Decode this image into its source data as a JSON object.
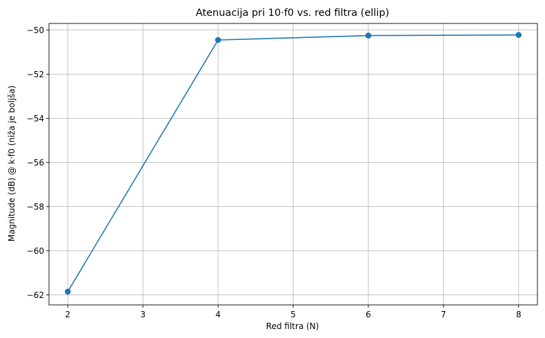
{
  "chart_data": {
    "type": "line",
    "title": "Atenuacija pri 10·f0 vs. red filtra (ellip)",
    "xlabel": "Red filtra (N)",
    "ylabel": "Magnitude (dB) @ k·f0 (niža je boljša)",
    "xlim": [
      1.75,
      8.25
    ],
    "ylim": [
      -62.45,
      -49.7
    ],
    "xticks": [
      2,
      3,
      4,
      5,
      6,
      7,
      8
    ],
    "xtick_labels": [
      "2",
      "3",
      "4",
      "5",
      "6",
      "7",
      "8"
    ],
    "yticks": [
      -62,
      -60,
      -58,
      -56,
      -54,
      -52,
      -50
    ],
    "ytick_labels": [
      "−62",
      "−60",
      "−58",
      "−56",
      "−54",
      "−52",
      "−50"
    ],
    "grid": true,
    "series": [
      {
        "x": [
          2,
          4,
          6,
          8
        ],
        "values": [
          -61.85,
          -50.45,
          -50.25,
          -50.22
        ],
        "color": "#1f77b4",
        "marker": "circle"
      }
    ]
  }
}
